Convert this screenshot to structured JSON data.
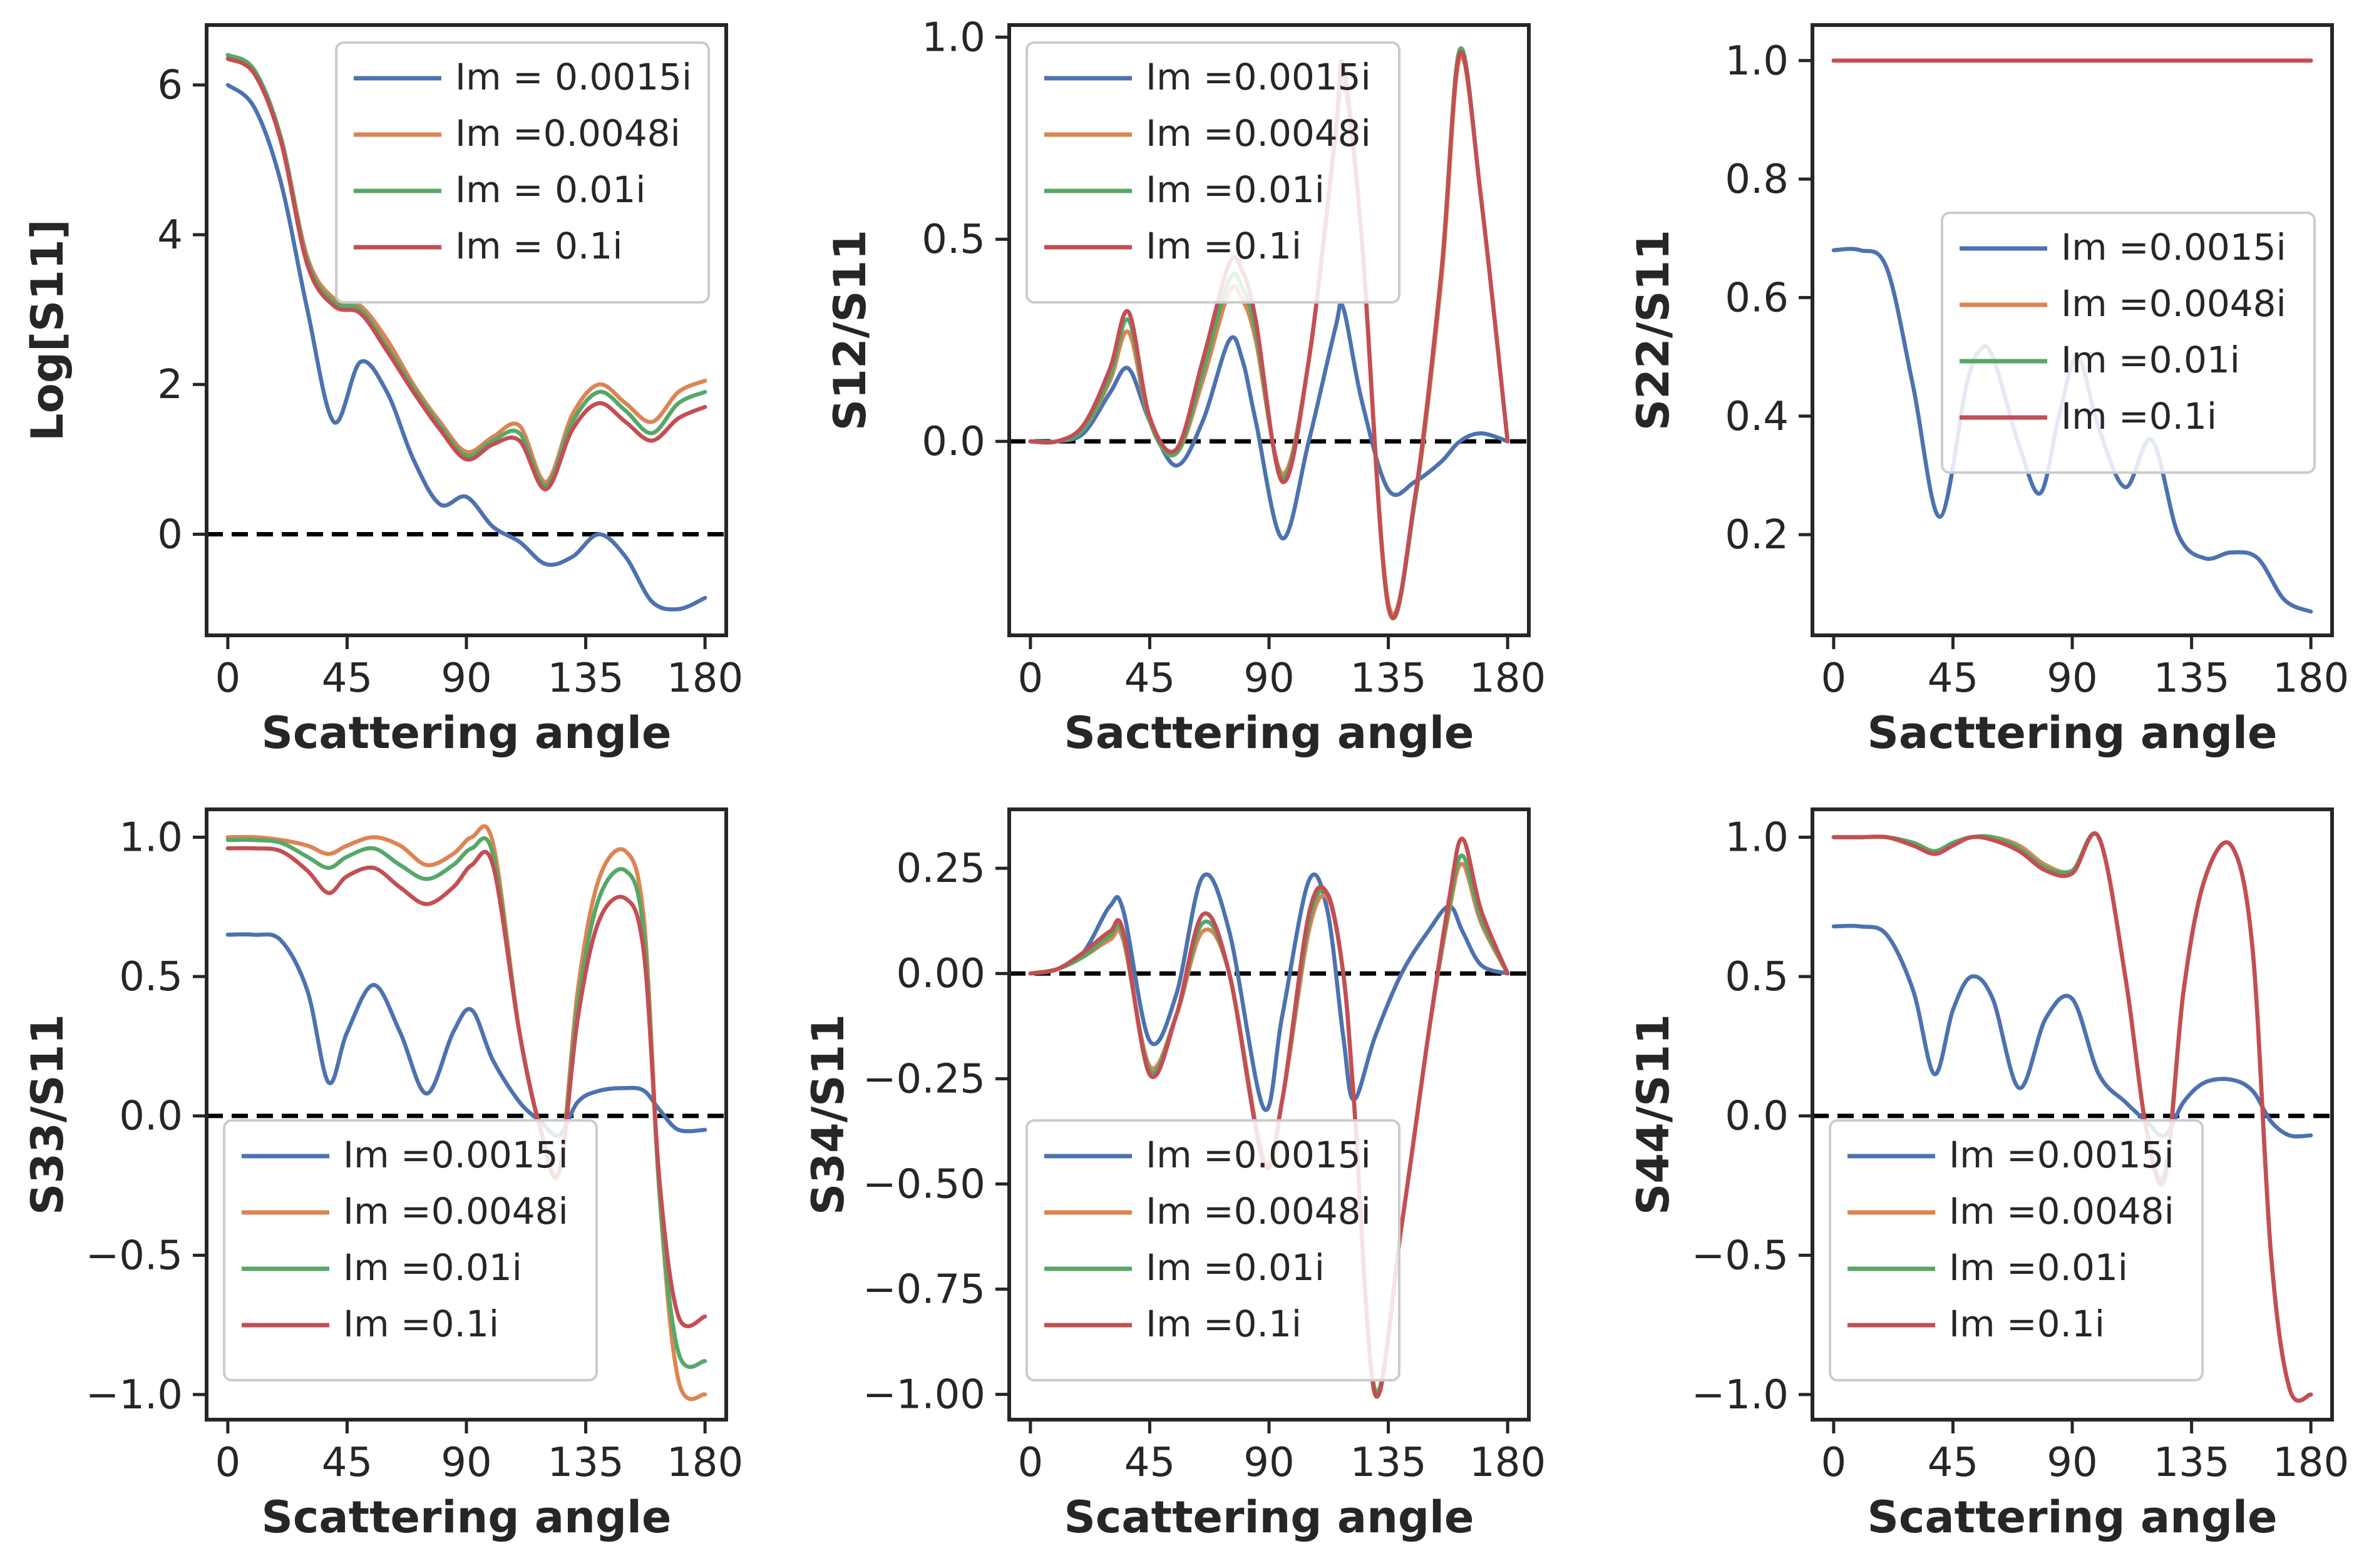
{
  "figure": {
    "layout": "2x3 grid"
  },
  "colors": {
    "series": [
      "#4c72b0",
      "#dd8452",
      "#55a868",
      "#c44e52"
    ],
    "axes": "#262626",
    "zero_line": "#000000",
    "background": "#ffffff"
  },
  "chart_data": [
    {
      "type": "line",
      "panel": "top-left",
      "title": "",
      "xlabel": "Scattering angle",
      "ylabel": "Log[S11]",
      "xlim": [
        -8,
        188
      ],
      "ylim": [
        -1.35,
        6.8
      ],
      "xticks": [
        0,
        45,
        90,
        135,
        180
      ],
      "yticks": [
        0,
        2,
        4,
        6
      ],
      "ytick_labels": [
        "0",
        "2",
        "4",
        "6"
      ],
      "zero_line": true,
      "legend_loc": "upper right",
      "x": [
        0,
        10,
        20,
        30,
        40,
        50,
        60,
        70,
        80,
        90,
        100,
        110,
        120,
        130,
        140,
        150,
        160,
        170,
        180
      ],
      "series": [
        {
          "name": "Im = 0.0015i",
          "values": [
            6.0,
            5.7,
            4.7,
            3.0,
            1.5,
            2.3,
            1.9,
            1.0,
            0.4,
            0.5,
            0.1,
            -0.1,
            -0.4,
            -0.3,
            0.0,
            -0.3,
            -0.9,
            -1.0,
            -0.85
          ]
        },
        {
          "name": "Im =0.0048i",
          "values": [
            6.4,
            6.2,
            5.3,
            3.7,
            3.15,
            3.05,
            2.6,
            2.0,
            1.5,
            1.1,
            1.3,
            1.45,
            0.7,
            1.6,
            2.0,
            1.75,
            1.5,
            1.9,
            2.05
          ]
        },
        {
          "name": "Im = 0.01i",
          "values": [
            6.4,
            6.2,
            5.3,
            3.65,
            3.1,
            3.0,
            2.5,
            1.95,
            1.45,
            1.05,
            1.25,
            1.35,
            0.65,
            1.5,
            1.9,
            1.65,
            1.35,
            1.75,
            1.9
          ]
        },
        {
          "name": "Im = 0.1i",
          "values": [
            6.35,
            6.15,
            5.25,
            3.6,
            3.05,
            2.95,
            2.45,
            1.9,
            1.4,
            1.0,
            1.2,
            1.25,
            0.6,
            1.4,
            1.75,
            1.5,
            1.25,
            1.55,
            1.7
          ]
        }
      ]
    },
    {
      "type": "line",
      "panel": "top-middle",
      "title": "",
      "xlabel": "Sacttering angle",
      "ylabel": "S12/S11",
      "xlim": [
        -8,
        188
      ],
      "ylim": [
        -0.48,
        1.03
      ],
      "xticks": [
        0,
        45,
        90,
        135,
        180
      ],
      "yticks": [
        0,
        0.5,
        1.0
      ],
      "ytick_labels": [
        "0.0",
        "0.5",
        "1.0"
      ],
      "zero_line": true,
      "legend_loc": "upper left",
      "x": [
        0,
        10,
        20,
        30,
        37,
        45,
        55,
        65,
        75,
        80,
        85,
        95,
        105,
        115,
        118,
        125,
        135,
        145,
        155,
        162,
        170,
        180
      ],
      "series": [
        {
          "name": "Im =0.0015i",
          "values": [
            0,
            0,
            0.02,
            0.12,
            0.18,
            0.05,
            -0.06,
            0.05,
            0.25,
            0.2,
            0.05,
            -0.24,
            0.0,
            0.28,
            0.33,
            0.1,
            -0.12,
            -0.1,
            -0.05,
            0.0,
            0.02,
            0.0
          ]
        },
        {
          "name": "Im =0.0048i",
          "values": [
            0,
            0,
            0.03,
            0.15,
            0.27,
            0.05,
            -0.03,
            0.15,
            0.37,
            0.35,
            0.25,
            -0.08,
            0.2,
            0.75,
            0.9,
            0.5,
            -0.4,
            -0.15,
            0.4,
            0.95,
            0.6,
            0.0
          ]
        },
        {
          "name": "Im =0.01i",
          "values": [
            0,
            0,
            0.03,
            0.16,
            0.3,
            0.05,
            -0.03,
            0.17,
            0.4,
            0.38,
            0.27,
            -0.09,
            0.2,
            0.75,
            0.92,
            0.5,
            -0.41,
            -0.15,
            0.42,
            0.97,
            0.6,
            0.0
          ]
        },
        {
          "name": "Im =0.1i",
          "values": [
            0,
            0,
            0.04,
            0.18,
            0.32,
            0.06,
            -0.02,
            0.2,
            0.44,
            0.42,
            0.3,
            -0.1,
            0.2,
            0.76,
            0.93,
            0.5,
            -0.41,
            -0.14,
            0.42,
            0.96,
            0.6,
            0.0
          ]
        }
      ]
    },
    {
      "type": "line",
      "panel": "top-right",
      "title": "",
      "xlabel": "Sacttering angle",
      "ylabel": "S22/S11",
      "xlim": [
        -8,
        188
      ],
      "ylim": [
        0.03,
        1.06
      ],
      "xticks": [
        0,
        45,
        90,
        135,
        180
      ],
      "yticks": [
        0.2,
        0.4,
        0.6,
        0.8,
        1.0
      ],
      "ytick_labels": [
        "0.2",
        "0.4",
        "0.6",
        "0.8",
        "1.0"
      ],
      "zero_line": false,
      "legend_loc": "center right",
      "x": [
        0,
        10,
        20,
        30,
        40,
        50,
        55,
        60,
        70,
        78,
        85,
        92,
        100,
        110,
        120,
        130,
        140,
        150,
        160,
        170,
        180
      ],
      "series": [
        {
          "name": "Im =0.0015i",
          "values": [
            0.68,
            0.68,
            0.65,
            0.45,
            0.23,
            0.45,
            0.51,
            0.5,
            0.35,
            0.27,
            0.4,
            0.5,
            0.38,
            0.28,
            0.36,
            0.2,
            0.16,
            0.17,
            0.16,
            0.09,
            0.07
          ]
        },
        {
          "name": "Im =0.0048i",
          "values": [
            1.0,
            1.0,
            1.0,
            1.0,
            1.0,
            1.0,
            1.0,
            1.0,
            1.0,
            1.0,
            1.0,
            1.0,
            1.0,
            1.0,
            1.0,
            1.0,
            1.0,
            1.0,
            1.0,
            1.0,
            1.0
          ]
        },
        {
          "name": "Im =0.01i",
          "values": [
            1.0,
            1.0,
            1.0,
            1.0,
            1.0,
            1.0,
            1.0,
            1.0,
            1.0,
            1.0,
            1.0,
            1.0,
            1.0,
            1.0,
            1.0,
            1.0,
            1.0,
            1.0,
            1.0,
            1.0,
            1.0
          ]
        },
        {
          "name": "Im =0.1i",
          "values": [
            1.0,
            1.0,
            1.0,
            1.0,
            1.0,
            1.0,
            1.0,
            1.0,
            1.0,
            1.0,
            1.0,
            1.0,
            1.0,
            1.0,
            1.0,
            1.0,
            1.0,
            1.0,
            1.0,
            1.0,
            1.0
          ]
        }
      ]
    },
    {
      "type": "line",
      "panel": "bottom-left",
      "title": "",
      "xlabel": "Scattering angle",
      "ylabel": "S33/S11",
      "xlim": [
        -8,
        188
      ],
      "ylim": [
        -1.09,
        1.1
      ],
      "xticks": [
        0,
        45,
        90,
        135,
        180
      ],
      "yticks": [
        -1.0,
        -0.5,
        0.0,
        0.5,
        1.0
      ],
      "ytick_labels": [
        "−1.0",
        "−0.5",
        "0.0",
        "0.5",
        "1.0"
      ],
      "zero_line": true,
      "legend_loc": "lower left",
      "x": [
        0,
        10,
        20,
        30,
        38,
        45,
        55,
        65,
        75,
        85,
        92,
        100,
        110,
        118,
        125,
        132,
        140,
        150,
        157,
        163,
        170,
        180
      ],
      "series": [
        {
          "name": "Im =0.0015i",
          "values": [
            0.65,
            0.65,
            0.63,
            0.45,
            0.12,
            0.3,
            0.47,
            0.3,
            0.08,
            0.3,
            0.38,
            0.2,
            0.05,
            -0.02,
            -0.07,
            0.05,
            0.09,
            0.1,
            0.09,
            0.02,
            -0.05,
            -0.05
          ]
        },
        {
          "name": "Im =0.0048i",
          "values": [
            1.0,
            1.0,
            0.99,
            0.97,
            0.94,
            0.97,
            1.0,
            0.97,
            0.9,
            0.94,
            1.0,
            0.98,
            0.3,
            -0.05,
            -0.2,
            0.45,
            0.85,
            0.95,
            0.7,
            -0.3,
            -0.95,
            -1.0
          ]
        },
        {
          "name": "Im =0.01i",
          "values": [
            0.99,
            0.99,
            0.98,
            0.93,
            0.89,
            0.93,
            0.96,
            0.9,
            0.85,
            0.9,
            0.96,
            0.94,
            0.3,
            -0.05,
            -0.2,
            0.4,
            0.78,
            0.88,
            0.65,
            -0.3,
            -0.85,
            -0.88
          ]
        },
        {
          "name": "Im =0.1i",
          "values": [
            0.96,
            0.96,
            0.95,
            0.88,
            0.8,
            0.86,
            0.89,
            0.82,
            0.76,
            0.82,
            0.9,
            0.9,
            0.3,
            -0.05,
            -0.2,
            0.35,
            0.7,
            0.78,
            0.58,
            -0.25,
            -0.72,
            -0.72
          ]
        }
      ]
    },
    {
      "type": "line",
      "panel": "bottom-middle",
      "title": "",
      "xlabel": "Scattering angle",
      "ylabel": "S34/S11",
      "xlim": [
        -8,
        188
      ],
      "ylim": [
        -1.06,
        0.39
      ],
      "xticks": [
        0,
        45,
        90,
        135,
        180
      ],
      "yticks": [
        -1.0,
        -0.75,
        -0.5,
        -0.25,
        0.0,
        0.25
      ],
      "ytick_labels": [
        "−1.00",
        "−0.75",
        "−0.50",
        "−0.25",
        "0.00",
        "0.25"
      ],
      "zero_line": true,
      "legend_loc": "lower left",
      "x": [
        0,
        10,
        20,
        30,
        35,
        45,
        55,
        65,
        75,
        88,
        95,
        105,
        112,
        118,
        122,
        130,
        140,
        150,
        158,
        163,
        170,
        180
      ],
      "series": [
        {
          "name": "Im =0.0015i",
          "values": [
            0,
            0.01,
            0.05,
            0.16,
            0.15,
            -0.16,
            -0.05,
            0.23,
            0.1,
            -0.32,
            -0.1,
            0.22,
            0.15,
            -0.15,
            -0.3,
            -0.15,
            0.0,
            0.1,
            0.16,
            0.1,
            0.02,
            0.0
          ]
        },
        {
          "name": "Im =0.0048i",
          "values": [
            0,
            0.01,
            0.04,
            0.08,
            0.08,
            -0.22,
            -0.1,
            0.1,
            0.0,
            -0.44,
            -0.3,
            0.1,
            0.18,
            0.0,
            -0.3,
            -0.99,
            -0.6,
            -0.15,
            0.15,
            0.26,
            0.12,
            0.0
          ]
        },
        {
          "name": "Im =0.01i",
          "values": [
            0,
            0.01,
            0.04,
            0.09,
            0.09,
            -0.23,
            -0.1,
            0.12,
            0.0,
            -0.45,
            -0.3,
            0.12,
            0.19,
            0.0,
            -0.3,
            -0.99,
            -0.6,
            -0.15,
            0.16,
            0.28,
            0.13,
            0.0
          ]
        },
        {
          "name": "Im =0.1i",
          "values": [
            0,
            0.01,
            0.05,
            0.1,
            0.1,
            -0.24,
            -0.1,
            0.14,
            0.0,
            -0.45,
            -0.3,
            0.14,
            0.19,
            0.0,
            -0.3,
            -1.0,
            -0.6,
            -0.15,
            0.18,
            0.32,
            0.15,
            0.0
          ]
        }
      ]
    },
    {
      "type": "line",
      "panel": "bottom-right",
      "title": "",
      "xlabel": "Scattering angle",
      "ylabel": "S44/S11",
      "xlim": [
        -8,
        188
      ],
      "ylim": [
        -1.09,
        1.1
      ],
      "xticks": [
        0,
        45,
        90,
        135,
        180
      ],
      "yticks": [
        -1.0,
        -0.5,
        0.0,
        0.5,
        1.0
      ],
      "ytick_labels": [
        "−1.0",
        "−0.5",
        "0.0",
        "0.5",
        "1.0"
      ],
      "zero_line": true,
      "legend_loc": "lower left",
      "x": [
        0,
        10,
        20,
        30,
        38,
        45,
        52,
        60,
        70,
        80,
        90,
        100,
        110,
        118,
        125,
        132,
        140,
        150,
        158,
        165,
        172,
        180
      ],
      "series": [
        {
          "name": "Im =0.0015i",
          "values": [
            0.68,
            0.68,
            0.65,
            0.45,
            0.15,
            0.38,
            0.5,
            0.42,
            0.1,
            0.35,
            0.42,
            0.15,
            0.05,
            -0.02,
            -0.07,
            0.05,
            0.12,
            0.13,
            0.09,
            -0.02,
            -0.07,
            -0.07
          ]
        },
        {
          "name": "Im =0.0048i",
          "values": [
            1.0,
            1.0,
            1.0,
            0.98,
            0.95,
            0.98,
            1.0,
            1.0,
            0.97,
            0.9,
            0.88,
            1.0,
            0.5,
            -0.05,
            -0.2,
            0.45,
            0.85,
            0.97,
            0.6,
            -0.5,
            -0.98,
            -1.0
          ]
        },
        {
          "name": "Im =0.01i",
          "values": [
            1.0,
            1.0,
            1.0,
            0.98,
            0.95,
            0.98,
            1.0,
            1.0,
            0.96,
            0.89,
            0.88,
            1.0,
            0.5,
            -0.05,
            -0.2,
            0.45,
            0.85,
            0.97,
            0.6,
            -0.5,
            -0.98,
            -1.0
          ]
        },
        {
          "name": "Im =0.1i",
          "values": [
            1.0,
            1.0,
            1.0,
            0.97,
            0.94,
            0.97,
            1.0,
            0.99,
            0.95,
            0.88,
            0.87,
            1.0,
            0.5,
            -0.05,
            -0.22,
            0.45,
            0.85,
            0.97,
            0.6,
            -0.5,
            -0.98,
            -1.0
          ]
        }
      ]
    }
  ]
}
